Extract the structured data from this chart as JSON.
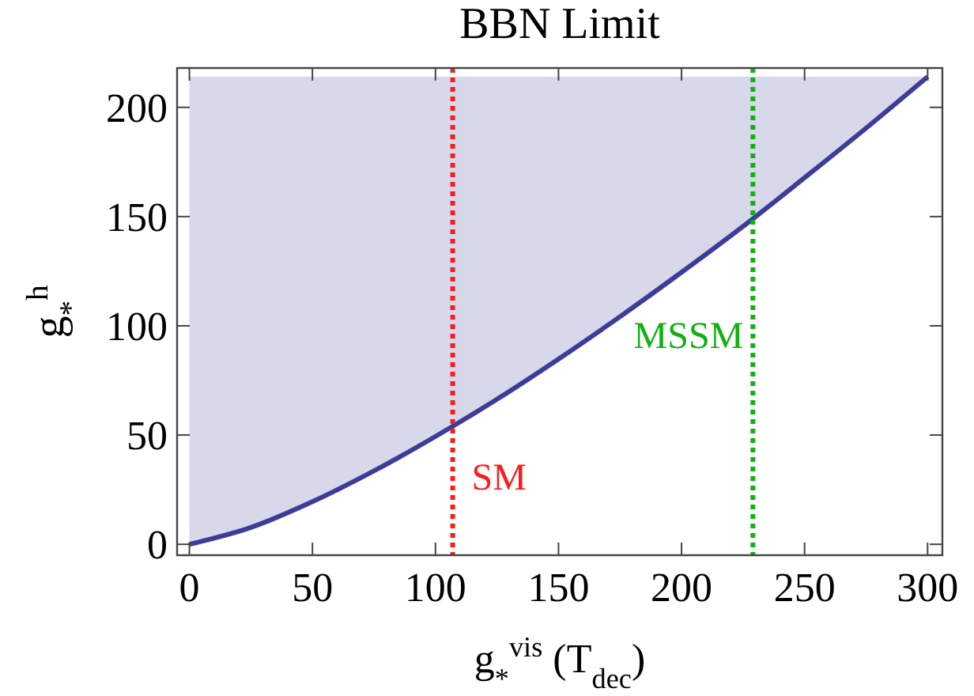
{
  "chart_data": {
    "type": "line",
    "title": "BBN Limit",
    "xlabel": "g$_{*}$$^{vis}$ (T$_{dec}$)",
    "ylabel": "g$_{*}$$^{h}$",
    "x": [
      0,
      25,
      50,
      75,
      107,
      125,
      150,
      175,
      200,
      229,
      250,
      275,
      300
    ],
    "series": [
      {
        "color": "#3c3c9a",
        "values": [
          0,
          7.7,
          19.5,
          33.6,
          54,
          66.4,
          84.8,
          104.2,
          124.5,
          149,
          167.8,
          190.5,
          214
        ],
        "lower": [
          0,
          7.7,
          19.5,
          33.6,
          54,
          66.4,
          84.8,
          104.2,
          124.5,
          149,
          167.8,
          190.5,
          214
        ],
        "upper": [
          214,
          214,
          214,
          214,
          214,
          214,
          214,
          214,
          214,
          214,
          214,
          214,
          214
        ]
      }
    ],
    "xlim": [
      -5,
      306
    ],
    "xticks": [
      0,
      50,
      100,
      150,
      200,
      250,
      300
    ],
    "ylim": [
      -5,
      218
    ],
    "yticks": [
      0,
      50,
      100,
      150,
      200
    ],
    "ref_lines": [
      {
        "axis": "x",
        "value": 107,
        "label": "SM",
        "color": "#ff1a1a",
        "line_style": "dotted"
      },
      {
        "axis": "x",
        "value": 229,
        "label": "MSSM",
        "color": "#12b012",
        "line_style": "dotted"
      }
    ],
    "grid": false,
    "marker": "none",
    "line_style": "solid"
  }
}
